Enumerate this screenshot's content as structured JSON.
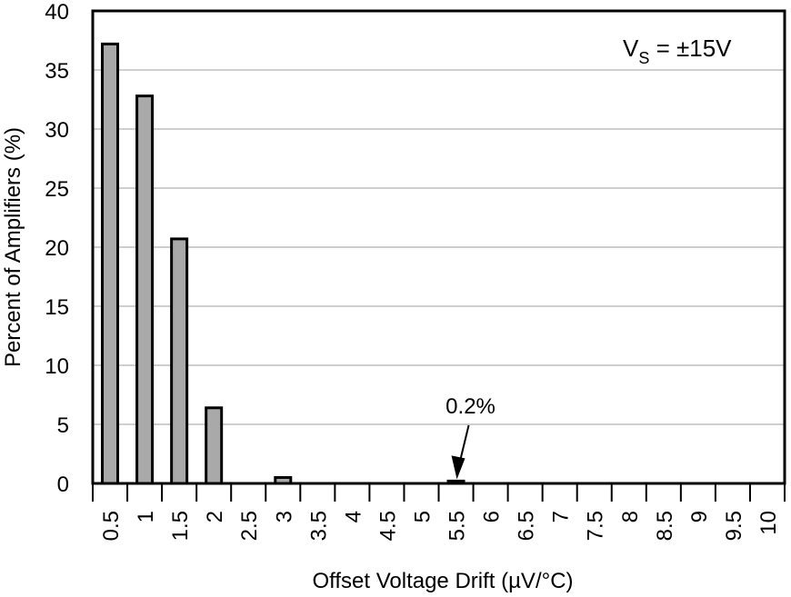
{
  "chart_data": {
    "type": "bar",
    "title": "",
    "xlabel": "Offset Voltage Drift (µV/°C)",
    "ylabel": "Percent of Amplifiers (%)",
    "categories": [
      "0.5",
      "1",
      "1.5",
      "2",
      "2.5",
      "3",
      "3.5",
      "4",
      "4.5",
      "5",
      "5.5",
      "6",
      "6.5",
      "7",
      "7.5",
      "8",
      "8.5",
      "9",
      "9.5",
      "10"
    ],
    "values": [
      37.2,
      32.8,
      20.7,
      6.4,
      0,
      0.5,
      0,
      0,
      0,
      0,
      0.2,
      0,
      0,
      0,
      0,
      0,
      0,
      0,
      0,
      0
    ],
    "ylim": [
      0,
      40
    ],
    "yticks": [
      "0",
      "5",
      "10",
      "15",
      "20",
      "25",
      "30",
      "35",
      "40"
    ],
    "grid": "horizontal",
    "legend": {
      "main": "V",
      "sub": "S",
      "rest": " = ±15V",
      "placement": "top-right"
    },
    "annotation": {
      "text": "0.2%",
      "target_category": "5.5"
    },
    "colors": {
      "bar_fill": "#a9a9a9",
      "bar_stroke": "#000000",
      "grid": "#b0b0b0",
      "frame": "#000000"
    }
  }
}
